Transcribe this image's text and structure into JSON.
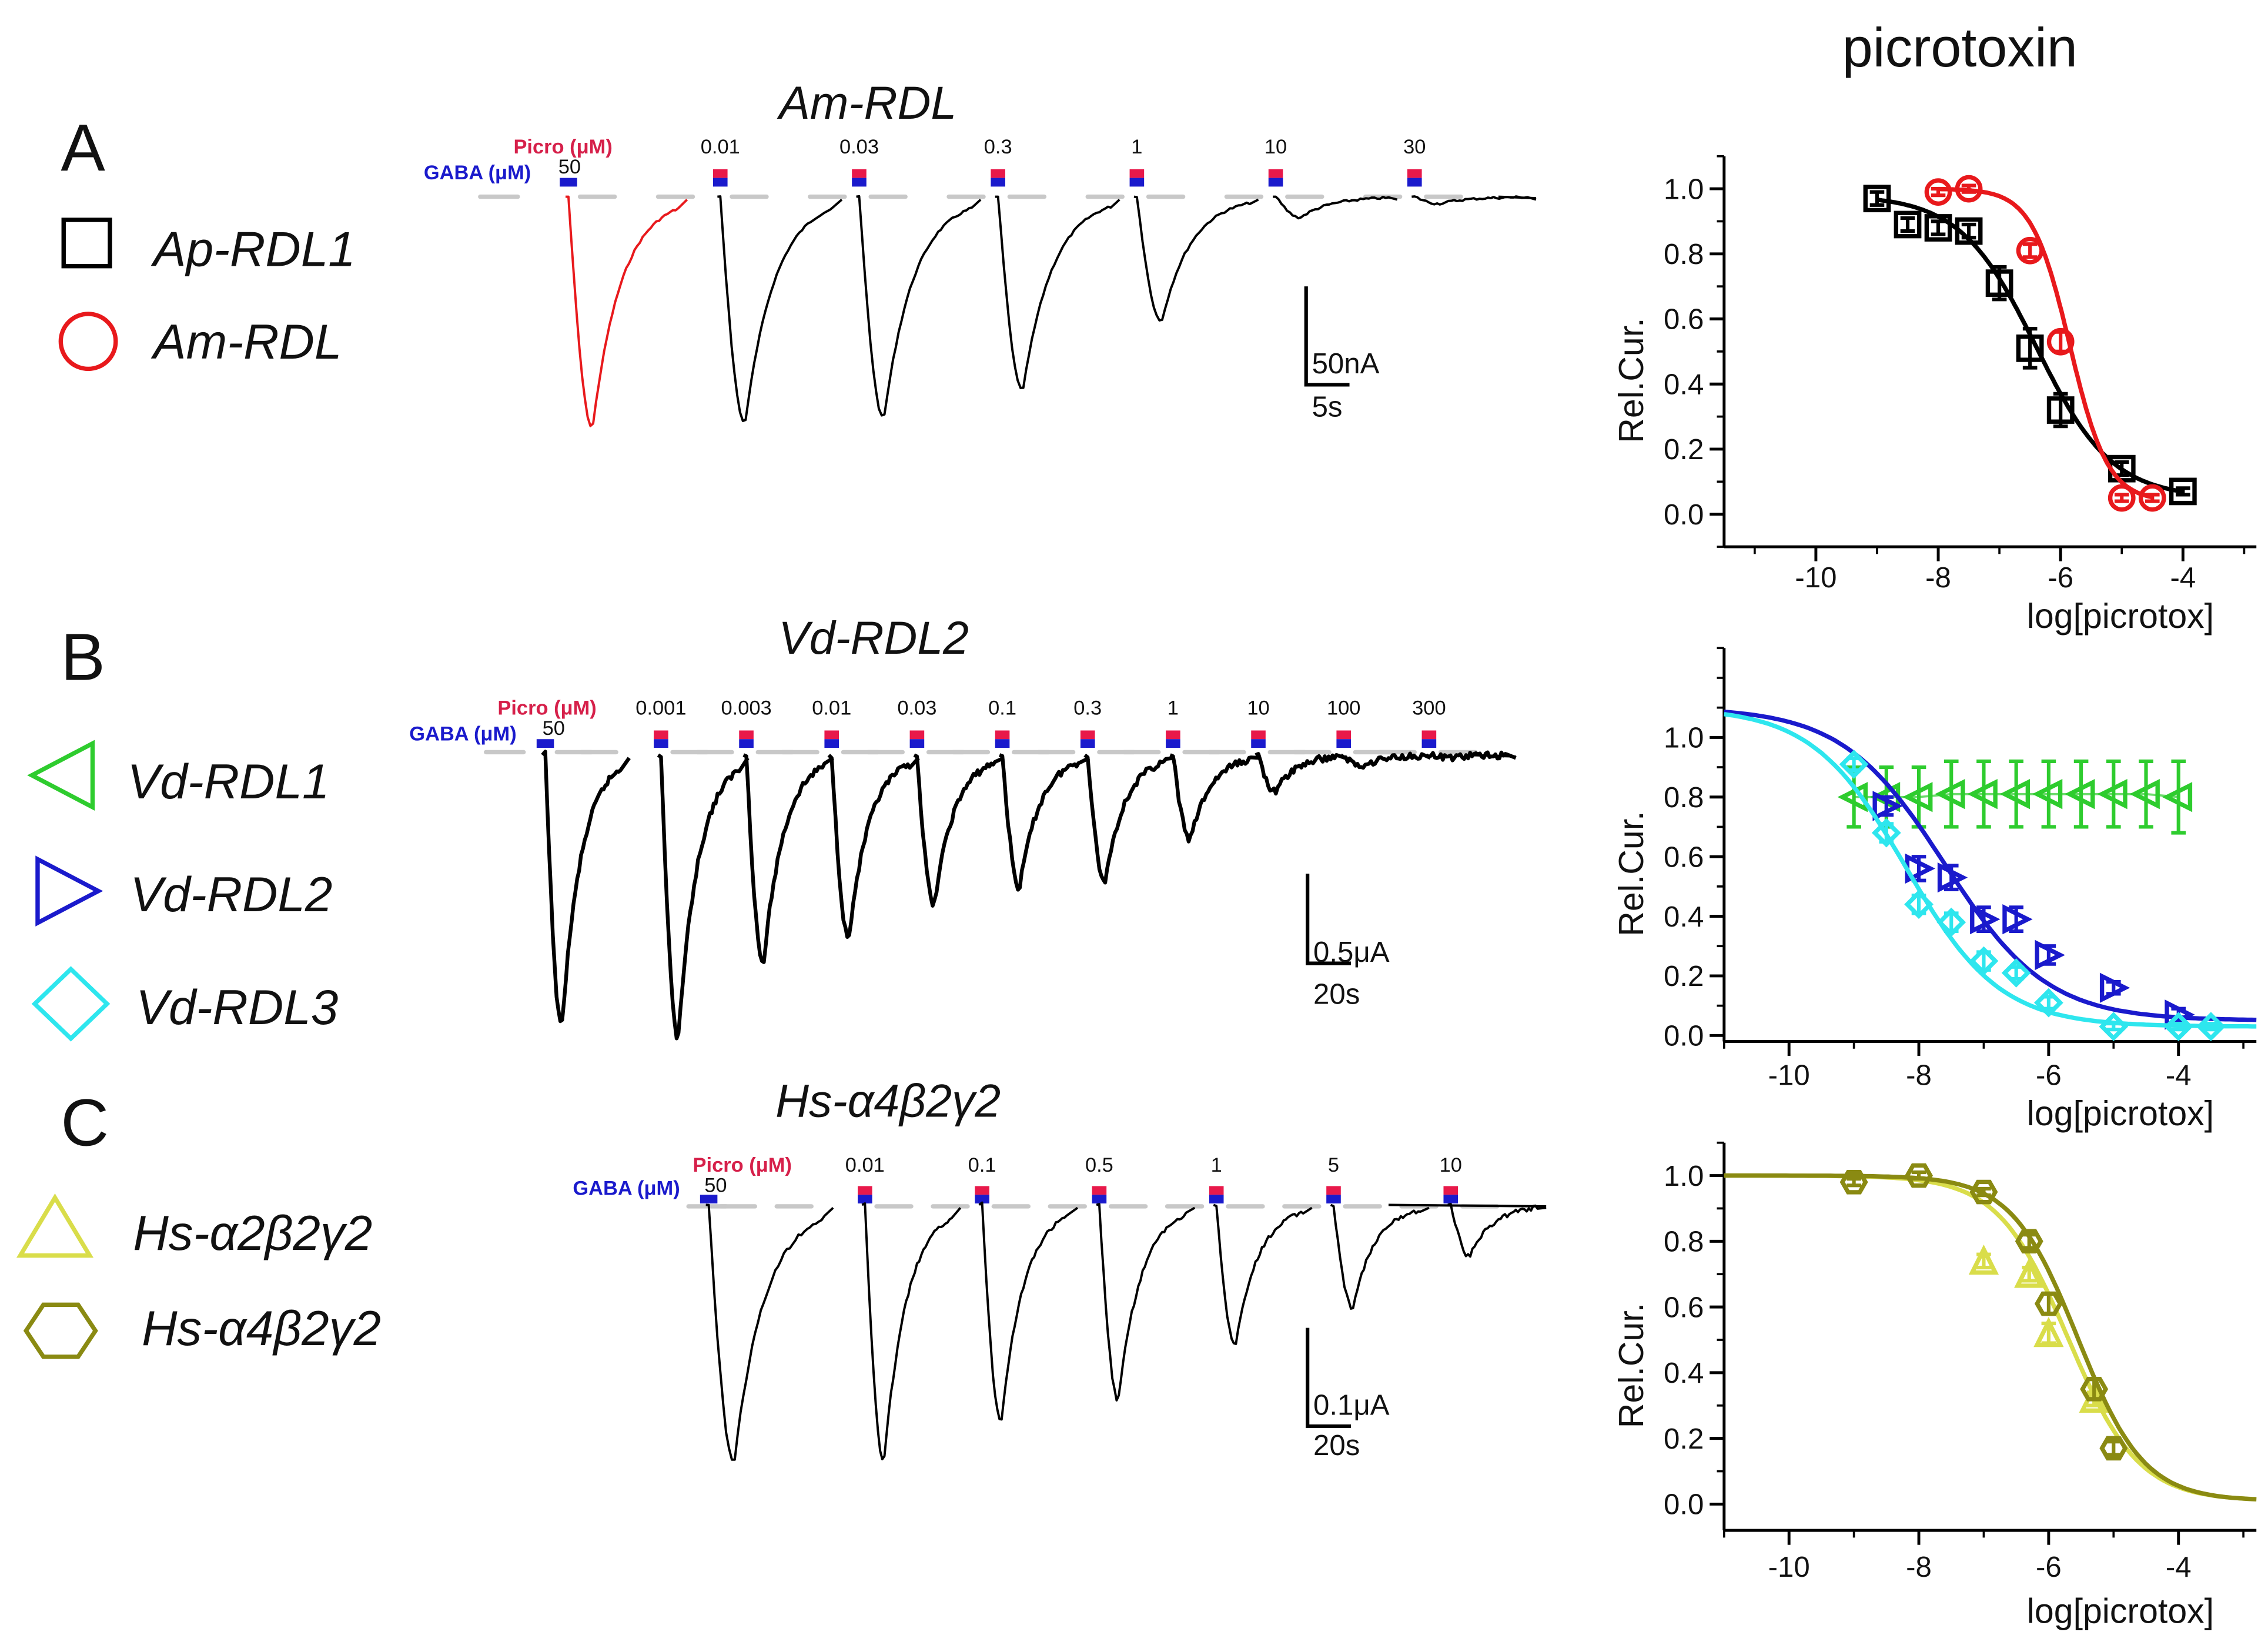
{
  "header": {
    "title": "picrotoxin"
  },
  "panels": [
    {
      "letter": "A",
      "trace_title": "Am-RDL",
      "legend": [
        {
          "label": "Ap-RDL1",
          "marker": "square",
          "color": "#000000"
        },
        {
          "label": "Am-RDL",
          "marker": "circle",
          "color": "#e8191c"
        }
      ],
      "trace": {
        "picro_label": "Picro (μM)",
        "gaba_label": "GABA (μM)",
        "gaba_conc": "50",
        "concentrations": [
          "0.01",
          "0.03",
          "0.3",
          "1",
          "10",
          "30"
        ],
        "scale_amp": "50nA",
        "scale_time": "5s",
        "peak_fractions": [
          1.0,
          0.98,
          0.96,
          0.84,
          0.54,
          0.09,
          0.03
        ],
        "control_color": "#e8191c",
        "trace_color": "#000000"
      }
    },
    {
      "letter": "B",
      "trace_title": "Vd-RDL2",
      "legend": [
        {
          "label": "Vd-RDL1",
          "marker": "triangle-left",
          "color": "#2ecc2e"
        },
        {
          "label": "Vd-RDL2",
          "marker": "triangle-right",
          "color": "#1a1acc"
        },
        {
          "label": "Vd-RDL3",
          "marker": "diamond",
          "color": "#2ee6ee"
        }
      ],
      "trace": {
        "picro_label": "Picro (μM)",
        "gaba_label": "GABA (μM)",
        "gaba_conc": "50",
        "concentrations": [
          "0.001",
          "0.003",
          "0.01",
          "0.03",
          "0.1",
          "0.3",
          "1",
          "10",
          "100",
          "300"
        ],
        "scale_amp": "0.5μA",
        "scale_time": "20s",
        "peak_fractions": [
          0.96,
          1.0,
          0.74,
          0.65,
          0.53,
          0.47,
          0.45,
          0.3,
          0.13,
          0.04,
          0.01
        ],
        "control_color": "#000000",
        "trace_color": "#000000"
      }
    },
    {
      "letter": "C",
      "trace_title": "Hs-α4β2γ2",
      "legend": [
        {
          "label": "Hs-α2β2γ2",
          "marker": "triangle-up",
          "color": "#d9dd4a"
        },
        {
          "label": "Hs-α4β2γ2",
          "marker": "hexagon",
          "color": "#8a8a12"
        }
      ],
      "trace": {
        "picro_label": "Picro (μM)",
        "gaba_label": "GABA (μM)",
        "gaba_conc": "50",
        "concentrations": [
          "0.01",
          "0.1",
          "0.5",
          "1",
          "5",
          "10"
        ],
        "scale_amp": "0.1μA",
        "scale_time": "20s",
        "peak_fractions": [
          1.0,
          1.0,
          0.84,
          0.76,
          0.55,
          0.4,
          0.2
        ],
        "control_color": "#000000",
        "trace_color": "#000000"
      }
    }
  ],
  "chart_data": [
    {
      "type": "scatter",
      "title": "picrotoxin",
      "xlabel": "log[picrotox]",
      "ylabel": "Rel.Cur.",
      "xlim": [
        -11.5,
        -2.8
      ],
      "ylim": [
        -0.1,
        1.1
      ],
      "xticks": [
        -10,
        -8,
        -6,
        -4
      ],
      "yticks": [
        0.0,
        0.2,
        0.4,
        0.6,
        0.8,
        1.0
      ],
      "series": [
        {
          "name": "Ap-RDL1",
          "marker": "square",
          "color": "#000000",
          "x": [
            -9,
            -8.5,
            -8,
            -7.5,
            -7,
            -6.5,
            -6,
            -5,
            -4
          ],
          "y": [
            0.97,
            0.89,
            0.88,
            0.87,
            0.71,
            0.51,
            0.32,
            0.14,
            0.07
          ],
          "err": [
            0.02,
            0.02,
            0.02,
            0.02,
            0.05,
            0.06,
            0.05,
            0.02,
            0.01
          ],
          "fit": {
            "bottom": 0.05,
            "top": 0.98,
            "log_ic50": -6.4,
            "hill": 0.7
          }
        },
        {
          "name": "Am-RDL",
          "marker": "circle",
          "color": "#e8191c",
          "x": [
            -8,
            -7.5,
            -6.5,
            -6,
            -5,
            -4.5
          ],
          "y": [
            0.99,
            1.0,
            0.81,
            0.53,
            0.05,
            0.05
          ],
          "err": [
            0.01,
            0.01,
            0.02,
            0.03,
            0.01,
            0.01
          ],
          "fit": {
            "bottom": 0.04,
            "top": 1.0,
            "log_ic50": -5.85,
            "hill": 1.4
          }
        }
      ]
    },
    {
      "type": "scatter",
      "xlabel": "log[picrotox]",
      "ylabel": "Rel.Cur.",
      "xlim": [
        -11.0,
        -2.8
      ],
      "ylim": [
        -0.02,
        1.3
      ],
      "xticks": [
        -10,
        -8,
        -6,
        -4
      ],
      "yticks": [
        0.0,
        0.2,
        0.4,
        0.6,
        0.8,
        1.0
      ],
      "series": [
        {
          "name": "Vd-RDL1",
          "marker": "triangle-left",
          "color": "#2ecc2e",
          "x": [
            -9,
            -8.5,
            -8,
            -7.5,
            -7,
            -6.5,
            -6,
            -5.5,
            -5,
            -4.5,
            -4
          ],
          "y": [
            0.8,
            0.8,
            0.8,
            0.81,
            0.81,
            0.81,
            0.81,
            0.81,
            0.81,
            0.81,
            0.8
          ],
          "err": [
            0.1,
            0.1,
            0.1,
            0.11,
            0.11,
            0.11,
            0.11,
            0.11,
            0.11,
            0.11,
            0.12
          ]
        },
        {
          "name": "Vd-RDL2",
          "marker": "triangle-right",
          "color": "#1a1acc",
          "x": [
            -8.5,
            -8,
            -7.5,
            -7,
            -6.5,
            -6,
            -5,
            -4
          ],
          "y": [
            0.77,
            0.56,
            0.53,
            0.39,
            0.39,
            0.27,
            0.16,
            0.07
          ],
          "err": [
            0.03,
            0.04,
            0.04,
            0.04,
            0.04,
            0.03,
            0.02,
            0.02
          ],
          "fit": {
            "bottom": 0.05,
            "top": 1.1,
            "log_ic50": -7.6,
            "hill": 0.55
          }
        },
        {
          "name": "Vd-RDL3",
          "marker": "diamond",
          "color": "#2ee6ee",
          "x": [
            -9,
            -8.5,
            -8,
            -7.5,
            -7,
            -6.5,
            -6,
            -5,
            -4,
            -3.5
          ],
          "y": [
            0.91,
            0.68,
            0.44,
            0.38,
            0.25,
            0.21,
            0.11,
            0.03,
            0.03,
            0.03
          ],
          "err": [
            0.02,
            0.03,
            0.03,
            0.03,
            0.03,
            0.02,
            0.02,
            0.01,
            0.01,
            0.01
          ],
          "fit": {
            "bottom": 0.03,
            "top": 1.1,
            "log_ic50": -8.2,
            "hill": 0.6
          }
        }
      ]
    },
    {
      "type": "scatter",
      "xlabel": "log[picrotox]",
      "ylabel": "Rel.Cur.",
      "xlim": [
        -11.0,
        -2.8
      ],
      "ylim": [
        -0.08,
        1.1
      ],
      "xticks": [
        -10,
        -8,
        -6,
        -4
      ],
      "yticks": [
        0.0,
        0.2,
        0.4,
        0.6,
        0.8,
        1.0
      ],
      "series": [
        {
          "name": "Hs-α2β2γ2",
          "marker": "triangle-up",
          "color": "#d9dd4a",
          "x": [
            -7,
            -6.3,
            -6,
            -5.3
          ],
          "y": [
            0.74,
            0.7,
            0.52,
            0.32
          ],
          "err": [
            0.02,
            0.02,
            0.03,
            0.02
          ],
          "fit": {
            "bottom": 0.01,
            "top": 1.0,
            "log_ic50": -5.7,
            "hill": 0.8
          }
        },
        {
          "name": "Hs-α4β2γ2",
          "marker": "hexagon",
          "color": "#8a8a12",
          "x": [
            -9,
            -8,
            -7,
            -6.3,
            -6,
            -5.3,
            -5
          ],
          "y": [
            0.98,
            1.0,
            0.95,
            0.8,
            0.61,
            0.35,
            0.17
          ],
          "err": [
            0.01,
            0.01,
            0.01,
            0.02,
            0.03,
            0.03,
            0.02
          ],
          "fit": {
            "bottom": 0.01,
            "top": 1.0,
            "log_ic50": -5.55,
            "hill": 0.85
          }
        }
      ]
    }
  ]
}
